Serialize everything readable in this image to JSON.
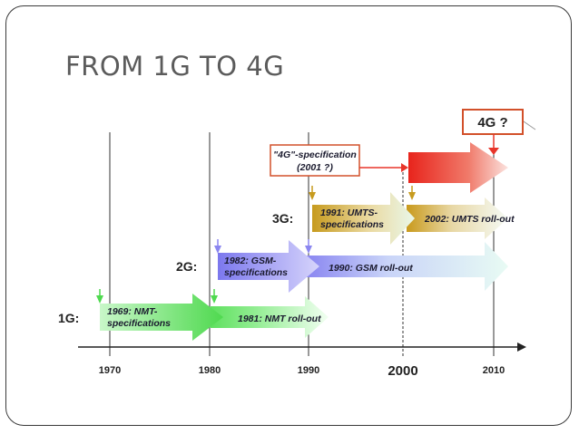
{
  "slide": {
    "title": "FROM 1G TO 4G"
  },
  "timeline": {
    "years": [
      "1970",
      "1980",
      "1990",
      "2000",
      "2010"
    ],
    "generations": [
      "1G:",
      "2G:",
      "3G:"
    ]
  },
  "labels": {
    "nmt_spec": [
      "1969: NMT-",
      "specifications"
    ],
    "nmt_rollout": "1981: NMT roll-out",
    "gsm_spec": [
      "1982: GSM-",
      "specifications"
    ],
    "gsm_rollout": "1990: GSM roll-out",
    "umts_spec": [
      "1991: UMTS-",
      "specifications"
    ],
    "umts_rollout": "2002: UMTS roll-out",
    "spec_4g": [
      "\"4G\"-specification",
      "(2001 ?)"
    ],
    "box_4g": "4G ?"
  },
  "colors": {
    "green": "#7ee67e",
    "blue": "#8b86f0",
    "gold": "#c9a227",
    "red": "#e8352a",
    "accent_red": "#d2502a"
  }
}
